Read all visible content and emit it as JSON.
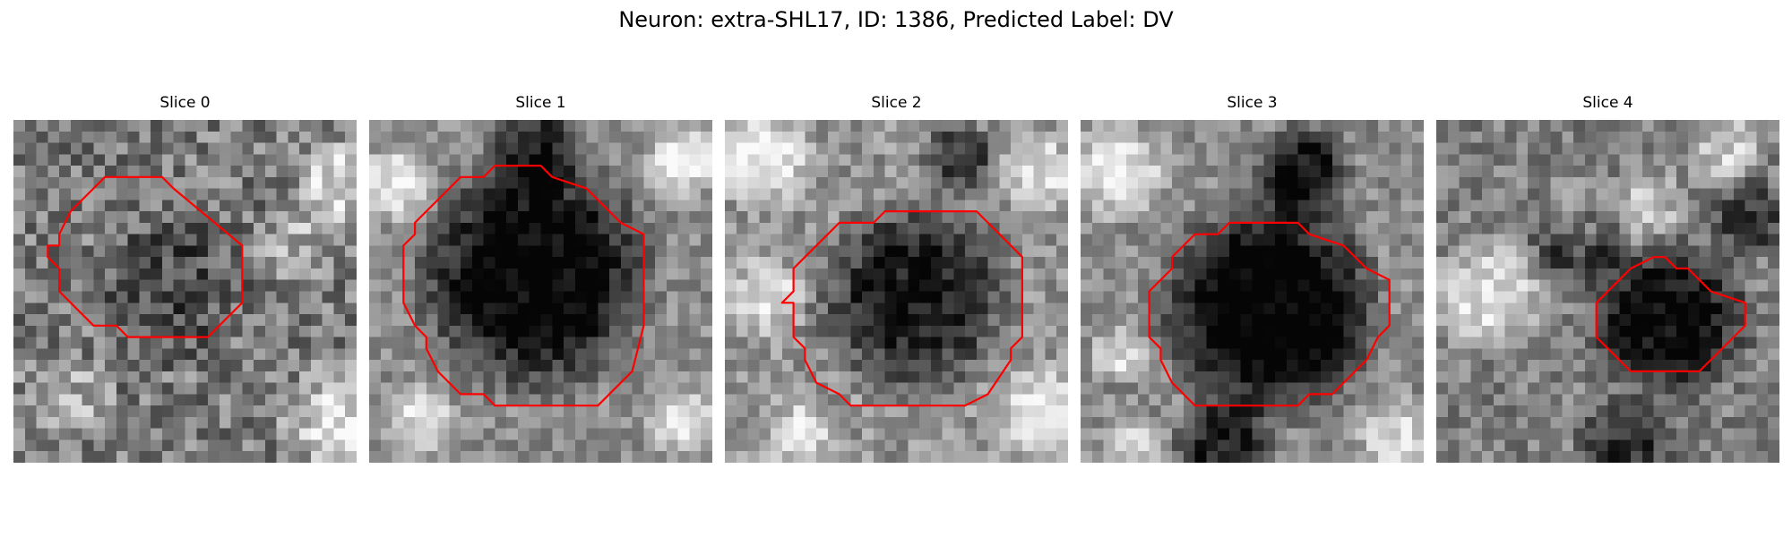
{
  "figure": {
    "title": "Neuron: extra-SHL17, ID: 1386, Predicted Label: DV"
  },
  "slices": [
    {
      "title": "Slice 0"
    },
    {
      "title": "Slice 1"
    },
    {
      "title": "Slice 2"
    },
    {
      "title": "Slice 3"
    },
    {
      "title": "Slice 4"
    }
  ],
  "colors": {
    "contour": "#ff0000",
    "background": "#ffffff"
  },
  "image_style": "grayscale microscopy slice with red segmentation contour"
}
